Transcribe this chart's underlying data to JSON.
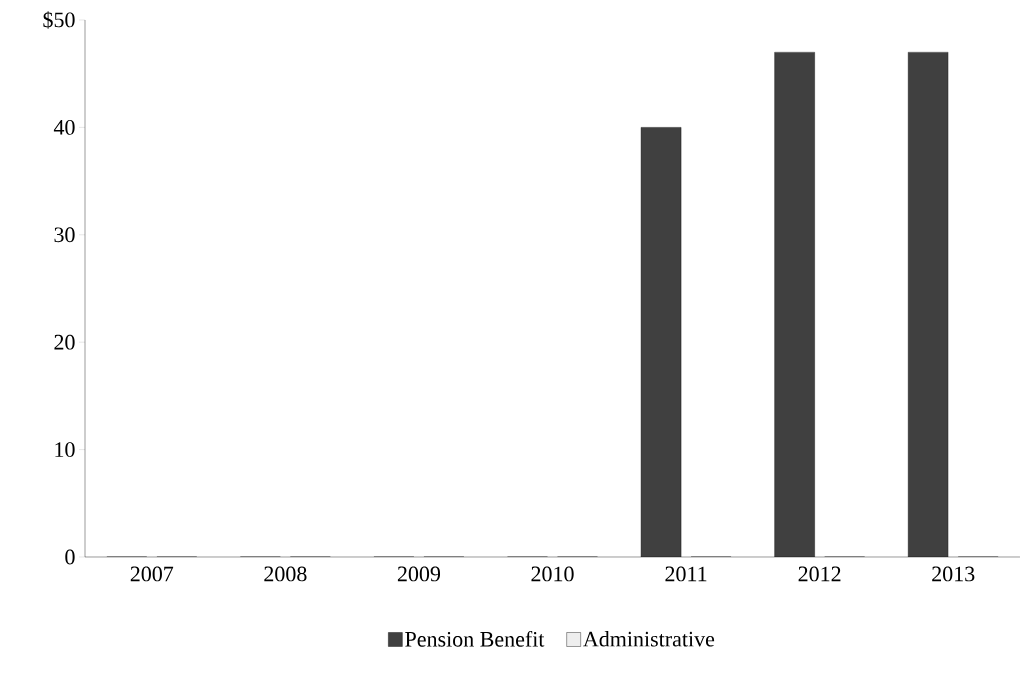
{
  "chart_data": {
    "type": "bar",
    "categories": [
      "2007",
      "2008",
      "2009",
      "2010",
      "2011",
      "2012",
      "2013"
    ],
    "series": [
      {
        "name": "Pension Benefit",
        "color": "#404040",
        "values": [
          0,
          0,
          0,
          0,
          40,
          47,
          47
        ]
      },
      {
        "name": "Administrative",
        "color": "#eeeeee",
        "values": [
          0,
          0,
          0,
          0,
          0,
          0,
          0
        ]
      }
    ],
    "ylim": [
      0,
      50
    ],
    "yticks": [
      0,
      10,
      20,
      30,
      40,
      {
        "value": 50,
        "label": "$50"
      }
    ],
    "grid": false,
    "legend": "bottom"
  }
}
